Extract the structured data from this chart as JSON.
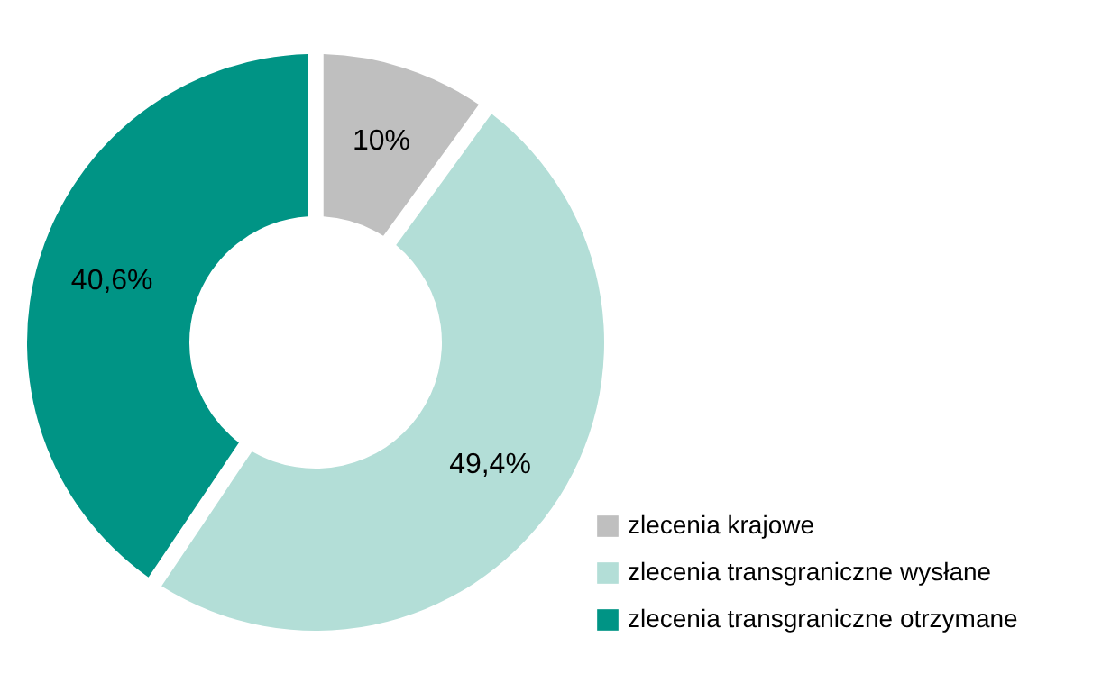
{
  "chart_data": {
    "type": "donut",
    "categories": [
      "zlecenia krajowe",
      "zlecenia transgraniczne wysłane",
      "zlecenia transgraniczne otrzymane"
    ],
    "values": [
      10,
      49.4,
      40.6
    ],
    "colors": [
      "#bfbfbf",
      "#b3ded7",
      "#009485"
    ],
    "value_labels": [
      "10%",
      "49,4%",
      "40,6%"
    ],
    "legend": "bottom right"
  }
}
